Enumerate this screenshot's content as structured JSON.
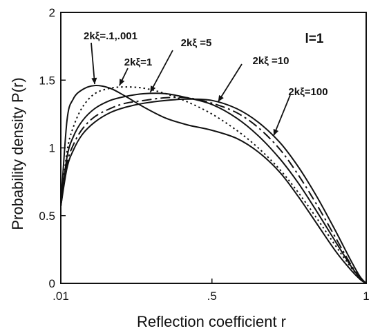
{
  "chart_data": {
    "type": "line",
    "xlabel": "Reflection coefficient  r",
    "ylabel": "Probability density  P(r)",
    "corner_label": "l=1",
    "xlim": [
      0.01,
      1
    ],
    "ylim": [
      0,
      2
    ],
    "x_ticks": [
      {
        "value": 0.01,
        "label": ".01"
      },
      {
        "value": 0.5,
        "label": ".5"
      },
      {
        "value": 1,
        "label": "1"
      }
    ],
    "y_ticks": [
      {
        "value": 0,
        "label": "0"
      },
      {
        "value": 0.5,
        "label": "0.5"
      },
      {
        "value": 1,
        "label": "1"
      },
      {
        "value": 1.5,
        "label": "1.5"
      },
      {
        "value": 2,
        "label": "2"
      }
    ],
    "grid": false,
    "series": [
      {
        "name": "2kξ=.1,.001",
        "dash": "solid",
        "points": [
          [
            0.01,
            0.57
          ],
          [
            0.03,
            1.2
          ],
          [
            0.05,
            1.36
          ],
          [
            0.08,
            1.43
          ],
          [
            0.12,
            1.46
          ],
          [
            0.17,
            1.44
          ],
          [
            0.22,
            1.38
          ],
          [
            0.28,
            1.3
          ],
          [
            0.35,
            1.22
          ],
          [
            0.42,
            1.17
          ],
          [
            0.5,
            1.13
          ],
          [
            0.58,
            1.07
          ],
          [
            0.65,
            0.97
          ],
          [
            0.72,
            0.82
          ],
          [
            0.78,
            0.64
          ],
          [
            0.84,
            0.44
          ],
          [
            0.9,
            0.24
          ],
          [
            0.95,
            0.1
          ],
          [
            0.98,
            0.03
          ],
          [
            1.0,
            0.0
          ]
        ]
      },
      {
        "name": "2kξ=1",
        "dash": "dotted",
        "points": [
          [
            0.01,
            0.57
          ],
          [
            0.03,
            0.97
          ],
          [
            0.05,
            1.15
          ],
          [
            0.08,
            1.3
          ],
          [
            0.12,
            1.4
          ],
          [
            0.17,
            1.44
          ],
          [
            0.22,
            1.45
          ],
          [
            0.28,
            1.44
          ],
          [
            0.35,
            1.4
          ],
          [
            0.42,
            1.34
          ],
          [
            0.5,
            1.25
          ],
          [
            0.58,
            1.13
          ],
          [
            0.65,
            1.0
          ],
          [
            0.72,
            0.84
          ],
          [
            0.78,
            0.67
          ],
          [
            0.84,
            0.48
          ],
          [
            0.9,
            0.28
          ],
          [
            0.95,
            0.12
          ],
          [
            0.98,
            0.04
          ],
          [
            1.0,
            0.0
          ]
        ]
      },
      {
        "name": "2kξ =5",
        "dash": "solid",
        "points": [
          [
            0.01,
            0.57
          ],
          [
            0.03,
            0.93
          ],
          [
            0.05,
            1.08
          ],
          [
            0.08,
            1.2
          ],
          [
            0.12,
            1.29
          ],
          [
            0.17,
            1.35
          ],
          [
            0.22,
            1.38
          ],
          [
            0.28,
            1.4
          ],
          [
            0.35,
            1.4
          ],
          [
            0.42,
            1.37
          ],
          [
            0.5,
            1.32
          ],
          [
            0.58,
            1.22
          ],
          [
            0.65,
            1.09
          ],
          [
            0.72,
            0.92
          ],
          [
            0.78,
            0.74
          ],
          [
            0.84,
            0.53
          ],
          [
            0.9,
            0.31
          ],
          [
            0.95,
            0.13
          ],
          [
            0.98,
            0.04
          ],
          [
            1.0,
            0.0
          ]
        ]
      },
      {
        "name": "2kξ =10",
        "dash": "dashdot",
        "points": [
          [
            0.01,
            0.57
          ],
          [
            0.03,
            0.88
          ],
          [
            0.05,
            1.02
          ],
          [
            0.08,
            1.14
          ],
          [
            0.12,
            1.23
          ],
          [
            0.17,
            1.29
          ],
          [
            0.22,
            1.33
          ],
          [
            0.28,
            1.35
          ],
          [
            0.35,
            1.37
          ],
          [
            0.42,
            1.37
          ],
          [
            0.5,
            1.33
          ],
          [
            0.58,
            1.26
          ],
          [
            0.65,
            1.15
          ],
          [
            0.72,
            0.99
          ],
          [
            0.78,
            0.8
          ],
          [
            0.84,
            0.58
          ],
          [
            0.9,
            0.34
          ],
          [
            0.95,
            0.14
          ],
          [
            0.98,
            0.04
          ],
          [
            1.0,
            0.0
          ]
        ]
      },
      {
        "name": "2kξ=100",
        "dash": "solid",
        "points": [
          [
            0.01,
            0.57
          ],
          [
            0.03,
            0.85
          ],
          [
            0.05,
            0.98
          ],
          [
            0.08,
            1.1
          ],
          [
            0.12,
            1.19
          ],
          [
            0.17,
            1.26
          ],
          [
            0.22,
            1.3
          ],
          [
            0.28,
            1.33
          ],
          [
            0.35,
            1.35
          ],
          [
            0.42,
            1.36
          ],
          [
            0.5,
            1.35
          ],
          [
            0.58,
            1.29
          ],
          [
            0.65,
            1.19
          ],
          [
            0.72,
            1.04
          ],
          [
            0.78,
            0.86
          ],
          [
            0.84,
            0.64
          ],
          [
            0.9,
            0.39
          ],
          [
            0.95,
            0.17
          ],
          [
            0.98,
            0.05
          ],
          [
            1.0,
            0.0
          ]
        ]
      }
    ],
    "annotations": [
      {
        "text": "2kξ=.1,.001",
        "series": 0,
        "target": [
          0.12,
          1.46
        ]
      },
      {
        "text": "2kξ=1",
        "series": 1,
        "target": [
          0.2,
          1.45
        ]
      },
      {
        "text": "2kξ =5",
        "series": 2,
        "target": [
          0.3,
          1.4
        ]
      },
      {
        "text": "2kξ =10",
        "series": 3,
        "target": [
          0.52,
          1.33
        ]
      },
      {
        "text": "2kξ=100",
        "series": 4,
        "target": [
          0.7,
          1.08
        ]
      }
    ]
  }
}
